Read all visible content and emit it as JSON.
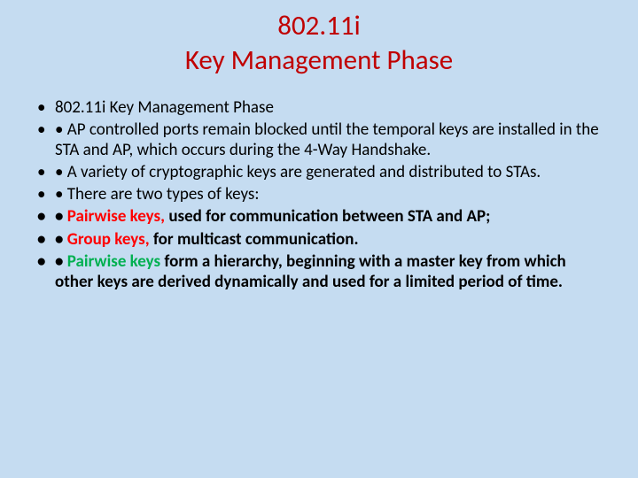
{
  "slide": {
    "background_color": "#c5dcf1",
    "title_color": "#c00000",
    "text_color": "#000000",
    "red": "#ff0000",
    "green": "#00b050",
    "title_line1": "802.11i",
    "title_line2": "Key Management Phase",
    "bullets": {
      "b0": "802.11i Key Management Phase",
      "b1": "• AP controlled ports remain blocked until the temporal keys are installed in the STA and AP, which occurs during the 4-Way Handshake.",
      "b2": "• A variety of cryptographic keys are generated and distributed to STAs.",
      "b3": "• There are two types of keys:",
      "b4_prefix": "• ",
      "b4_key": "Pairwise keys,",
      "b4_rest": " used for communication between STA and AP;",
      "b5_prefix": "• ",
      "b5_key": "Group keys,",
      "b5_rest": " for multicast communication.",
      "b6_prefix": "• ",
      "b6_key": "Pairwise keys",
      "b6_rest": " form a hierarchy, beginning with a master key from which other keys are derived dynamically and used for a limited period of time."
    }
  }
}
